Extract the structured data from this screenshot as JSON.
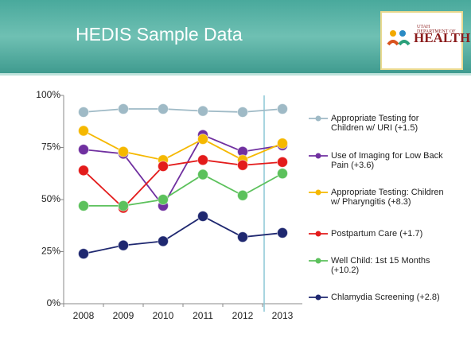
{
  "logo": {
    "top": "UTAH DEPARTMENT OF",
    "main": "HEALTH"
  },
  "chart_data": {
    "type": "line",
    "title": "HEDIS Sample Data",
    "categories": [
      "2008",
      "2009",
      "2010",
      "2011",
      "2012",
      "2013"
    ],
    "ylim": [
      0,
      100
    ],
    "yticks": [
      {
        "value": 0,
        "label": "0%"
      },
      {
        "value": 25,
        "label": "25%"
      },
      {
        "value": 50,
        "label": "50%"
      },
      {
        "value": 75,
        "label": "75%"
      },
      {
        "value": 100,
        "label": "100%"
      }
    ],
    "grid": false,
    "legend": "right",
    "series": [
      {
        "name": "Appropriate Testing for Children w/ URI (+1.5)",
        "color": "#9fbac6",
        "values": [
          92,
          93.5,
          93.5,
          92.5,
          92,
          93.5
        ]
      },
      {
        "name": "Use of Imaging for Low Back Pain (+3.6)",
        "color": "#7030a0",
        "values": [
          74,
          72,
          47,
          81,
          73,
          76
        ]
      },
      {
        "name": "Appropriate Testing: Children w/ Pharyngitis (+8.3)",
        "color": "#f5b800",
        "values": [
          83,
          73,
          69,
          79,
          69,
          77
        ]
      },
      {
        "name": "Postpartum Care (+1.7)",
        "color": "#e31b1b",
        "values": [
          64,
          46,
          66,
          69,
          66.5,
          68
        ]
      },
      {
        "name": "Well Child: 1st 15 Months (+10.2)",
        "color": "#5cc15c",
        "values": [
          47,
          47,
          50,
          62,
          52,
          62.5
        ]
      },
      {
        "name": "Chlamydia Screening (+2.8)",
        "color": "#1f2870",
        "values": [
          24,
          28,
          30,
          42,
          32,
          34
        ]
      }
    ]
  }
}
